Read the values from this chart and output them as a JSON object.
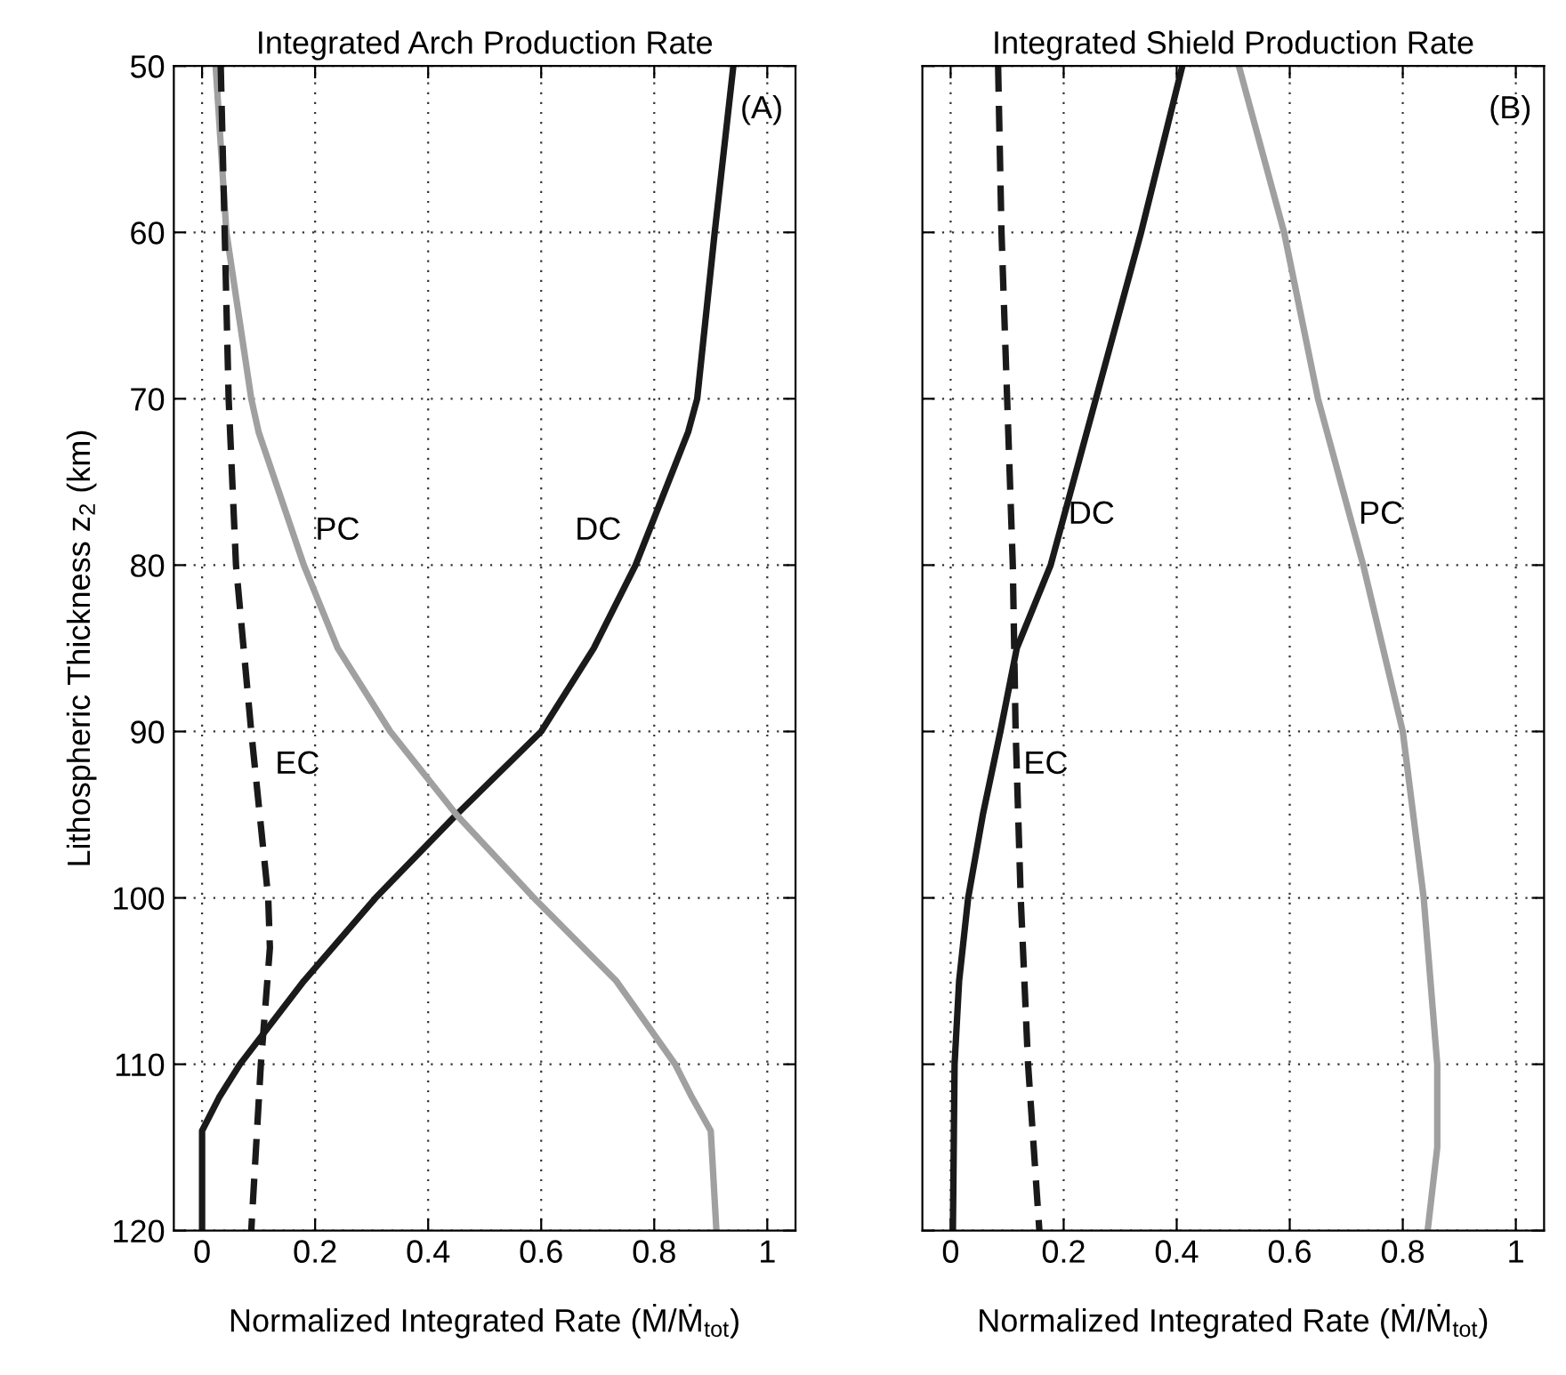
{
  "chart_data": [
    {
      "type": "line",
      "title": "Integrated Arch Production Rate",
      "xlabel": "Normalized Integrated Rate (Ṁ/Ṁ$_{tot}$)",
      "ylabel": "Lithospheric Thickness z$_{2}$ (km)",
      "orientation": "horizontal",
      "xlim": [
        -0.05,
        1.05
      ],
      "xticks": [
        0,
        0.2,
        0.4,
        0.6,
        0.8,
        1
      ],
      "ylim": [
        120,
        50
      ],
      "yticks": [
        50,
        60,
        70,
        80,
        90,
        100,
        110,
        120
      ],
      "grid": true,
      "series": [
        {
          "name": "DC",
          "color": "#1a1a1a",
          "line_style": "solid",
          "x": [
            50,
            60,
            70,
            72,
            80,
            85,
            90,
            95,
            100,
            105,
            110,
            112,
            114,
            120
          ],
          "values": [
            0.94,
            0.907,
            0.876,
            0.86,
            0.767,
            0.693,
            0.6,
            0.45,
            0.307,
            0.18,
            0.067,
            0.03,
            0,
            0
          ]
        },
        {
          "name": "PC",
          "color": "#a0a0a0",
          "line_style": "solid",
          "x": [
            50,
            60,
            70,
            72,
            80,
            85,
            90,
            95,
            100,
            105,
            110,
            112,
            114,
            120
          ],
          "values": [
            0.024,
            0.043,
            0.087,
            0.1,
            0.18,
            0.24,
            0.333,
            0.45,
            0.587,
            0.733,
            0.837,
            0.867,
            0.9,
            0.91
          ]
        },
        {
          "name": "EC",
          "color": "#1a1a1a",
          "line_style": "dashed",
          "x": [
            50,
            60,
            70,
            80,
            90,
            100,
            103,
            110,
            120
          ],
          "values": [
            0.033,
            0.04,
            0.047,
            0.06,
            0.087,
            0.117,
            0.12,
            0.104,
            0.087
          ]
        }
      ],
      "annotations": [
        "(A)"
      ]
    },
    {
      "type": "line",
      "title": "Integrated Shield Production Rate",
      "xlabel": "Normalized Integrated Rate (Ṁ/Ṁ$_{tot}$)",
      "orientation": "horizontal",
      "xlim": [
        -0.05,
        1.05
      ],
      "xticks": [
        0,
        0.2,
        0.4,
        0.6,
        0.8,
        1
      ],
      "ylim": [
        120,
        50
      ],
      "yticks": [
        50,
        60,
        70,
        80,
        90,
        100,
        110,
        120
      ],
      "grid": true,
      "tick_labels": "x",
      "series": [
        {
          "name": "DC",
          "color": "#1a1a1a",
          "line_style": "solid",
          "x": [
            50,
            60,
            70,
            80,
            85,
            90,
            95,
            100,
            105,
            110,
            120
          ],
          "values": [
            0.41,
            0.337,
            0.257,
            0.177,
            0.117,
            0.088,
            0.057,
            0.031,
            0.015,
            0.007,
            0.004
          ]
        },
        {
          "name": "PC",
          "color": "#a0a0a0",
          "line_style": "solid",
          "x": [
            50,
            60,
            70,
            80,
            90,
            100,
            110,
            115,
            120
          ],
          "values": [
            0.51,
            0.59,
            0.65,
            0.73,
            0.8,
            0.837,
            0.861,
            0.861,
            0.844
          ]
        },
        {
          "name": "EC",
          "color": "#1a1a1a",
          "line_style": "dashed",
          "x": [
            50,
            60,
            70,
            80,
            90,
            100,
            110,
            120
          ],
          "values": [
            0.084,
            0.09,
            0.1,
            0.11,
            0.115,
            0.124,
            0.137,
            0.157
          ]
        }
      ],
      "annotations": [
        "(B)"
      ]
    }
  ]
}
